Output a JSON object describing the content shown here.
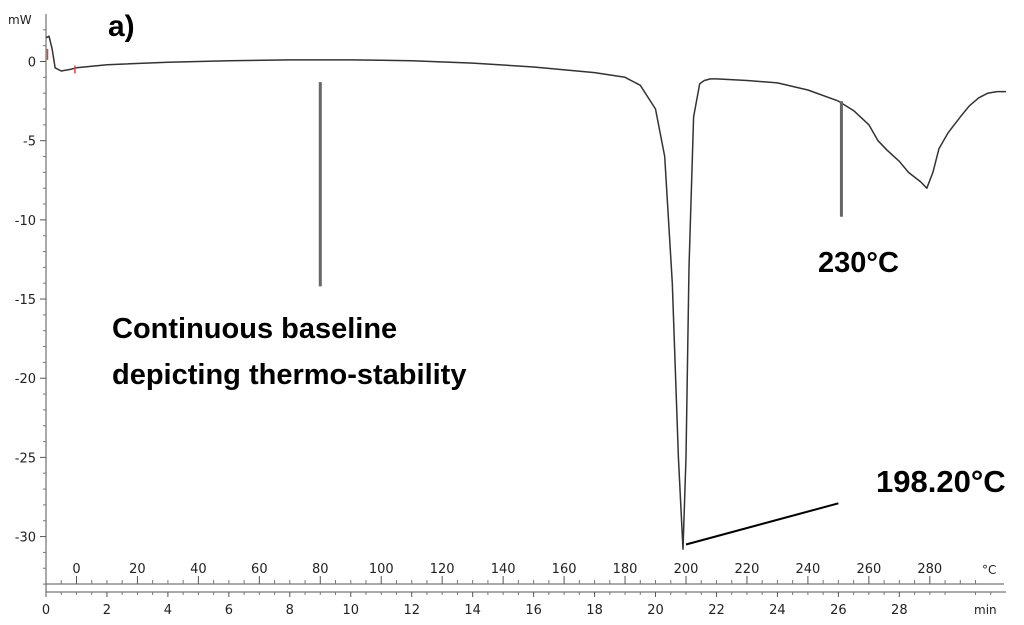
{
  "chart_data": {
    "type": "line",
    "panel_label": "a)",
    "y_unit": "mW",
    "x_unit": "min",
    "x2_unit": "°C",
    "ylim": [
      -33.5,
      3
    ],
    "xlim": [
      0,
      31.5
    ],
    "y_ticks": [
      "0",
      "-5",
      "-10",
      "-15",
      "-20",
      "-25",
      "-30"
    ],
    "y_tick_values": [
      0,
      -5,
      -10,
      -15,
      -20,
      -25,
      -30
    ],
    "x_ticks": [
      "0",
      "2",
      "4",
      "6",
      "8",
      "10",
      "12",
      "14",
      "16",
      "18",
      "20",
      "22",
      "24",
      "26",
      "28"
    ],
    "x_tick_values": [
      0,
      2,
      4,
      6,
      8,
      10,
      12,
      14,
      16,
      18,
      20,
      22,
      24,
      26,
      28
    ],
    "temp_ticks": [
      "0",
      "20",
      "40",
      "60",
      "80",
      "100",
      "120",
      "140",
      "160",
      "180",
      "200",
      "220",
      "240",
      "260",
      "280"
    ],
    "temp_tick_positions_min": [
      1,
      3,
      5,
      7,
      9,
      11,
      13,
      15,
      17,
      19,
      21,
      23,
      25,
      27,
      29
    ],
    "series": [
      {
        "x": [
          0,
          0.1,
          0.2,
          0.3,
          0.5,
          0.8,
          1.0,
          2,
          4,
          6,
          8,
          10,
          12,
          14,
          16,
          18,
          19,
          19.5,
          20,
          20.3,
          20.55,
          20.75,
          20.9,
          21.0,
          21.1,
          21.25,
          21.45,
          21.6,
          21.8,
          22,
          23,
          24,
          25,
          26,
          26.5,
          27,
          27.3,
          27.6,
          28,
          28.3,
          28.7,
          28.9,
          29.1,
          29.3,
          29.6,
          30,
          30.3,
          30.6,
          30.9,
          31.2,
          31.5
        ],
        "y": [
          1.5,
          1.6,
          0.8,
          -0.4,
          -0.6,
          -0.5,
          -0.4,
          -0.2,
          -0.05,
          0.05,
          0.1,
          0.1,
          0.05,
          -0.1,
          -0.35,
          -0.7,
          -1.0,
          -1.5,
          -3.0,
          -6.0,
          -14.0,
          -25.0,
          -30.8,
          -25.0,
          -13.0,
          -3.5,
          -1.4,
          -1.2,
          -1.1,
          -1.1,
          -1.2,
          -1.35,
          -1.8,
          -2.5,
          -3.1,
          -4.0,
          -5.0,
          -5.6,
          -6.3,
          -7.0,
          -7.6,
          -8.0,
          -7.0,
          -5.5,
          -4.5,
          -3.5,
          -2.8,
          -2.3,
          -2.0,
          -1.9,
          -1.9
        ]
      }
    ],
    "annotations": [
      {
        "text_lines": [
          "Continuous baseline",
          "depicting thermo-stability"
        ],
        "line_x": 9.0,
        "line_y": [
          -1.3,
          -14.2
        ]
      },
      {
        "text": "230°C",
        "line_x": 26.1,
        "line_y": [
          -2.5,
          -9.8
        ]
      },
      {
        "text": "198.20°C",
        "line_from": [
          21.0,
          -30.5
        ],
        "line_to": [
          26.0,
          -27.9
        ]
      }
    ]
  }
}
